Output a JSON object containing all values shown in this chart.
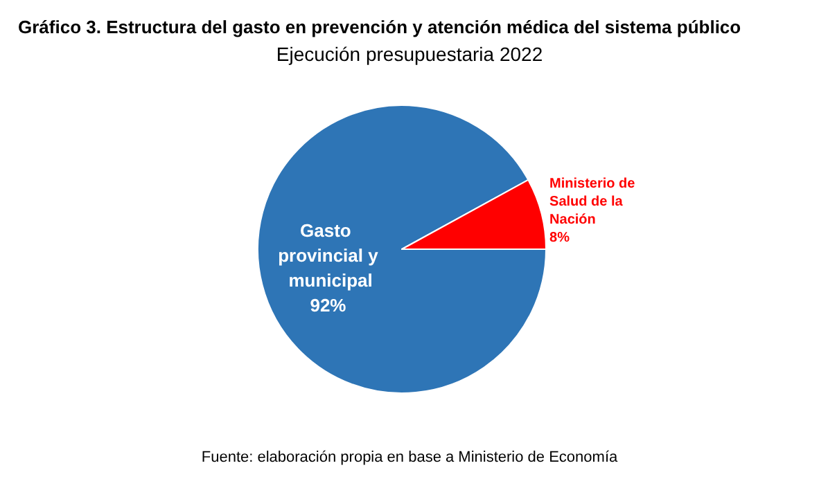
{
  "chart_data": {
    "type": "pie",
    "title": "Gráfico 3. Estructura del gasto en prevención y atención médica del sistema público",
    "subtitle": "Ejecución presupuestaria 2022",
    "categories": [
      "Gasto provincial y municipal",
      "Ministerio de Salud de la Nación"
    ],
    "values": [
      92,
      8
    ],
    "value_labels": [
      "92%",
      "8%"
    ],
    "colors": [
      "#2e75b6",
      "#ff0000"
    ],
    "annotations": [
      "Fuente: elaboración propia en base a Ministerio de Economía"
    ],
    "legend": false
  }
}
